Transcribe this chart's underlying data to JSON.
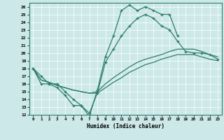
{
  "xlabel": "Humidex (Indice chaleur)",
  "line_color": "#2e7d6e",
  "bg_color": "#cce8e8",
  "xlim": [
    -0.5,
    23.5
  ],
  "ylim": [
    12,
    26.5
  ],
  "xticks": [
    0,
    1,
    2,
    3,
    4,
    5,
    6,
    7,
    8,
    9,
    10,
    11,
    12,
    13,
    14,
    15,
    16,
    17,
    18,
    19,
    20,
    21,
    22,
    23
  ],
  "yticks": [
    12,
    13,
    14,
    15,
    16,
    17,
    18,
    19,
    20,
    21,
    22,
    23,
    24,
    25,
    26
  ],
  "curve1_x": [
    0,
    1,
    2,
    3,
    4,
    5,
    6,
    7,
    8,
    9,
    10,
    11,
    12,
    13,
    14,
    15,
    16,
    17,
    18
  ],
  "curve1_y": [
    18,
    17,
    16,
    15.5,
    14.5,
    13.2,
    13.2,
    11.8,
    15.2,
    19.5,
    22.2,
    25.5,
    26.2,
    25.5,
    26.0,
    25.5,
    25.0,
    25.0,
    22.2
  ],
  "curve2_x": [
    0,
    1,
    2,
    3,
    4,
    5,
    6,
    7,
    8,
    9,
    10,
    11,
    12,
    13,
    14,
    15,
    16,
    17,
    18,
    19,
    20,
    21,
    22,
    23
  ],
  "curve2_y": [
    18,
    16.0,
    16.0,
    16.0,
    15.0,
    14.0,
    13.2,
    12.2,
    14.8,
    18.8,
    20.5,
    22.2,
    23.5,
    24.5,
    25.0,
    24.5,
    23.5,
    23.0,
    21.5,
    20.2,
    20.0,
    20.0,
    19.8,
    19.2
  ],
  "curve3_x": [
    0,
    1,
    2,
    3,
    4,
    5,
    6,
    7,
    8,
    9,
    10,
    11,
    12,
    13,
    14,
    15,
    16,
    17,
    18,
    19,
    20,
    21,
    22,
    23
  ],
  "curve3_y": [
    18,
    16.5,
    16.2,
    15.8,
    15.5,
    15.2,
    15.0,
    14.8,
    15.0,
    16.0,
    16.8,
    17.5,
    18.2,
    18.8,
    19.2,
    19.5,
    19.8,
    20.2,
    20.5,
    20.5,
    20.5,
    20.2,
    19.8,
    19.5
  ],
  "curve4_x": [
    0,
    1,
    2,
    3,
    4,
    5,
    6,
    7,
    8,
    9,
    10,
    11,
    12,
    13,
    14,
    15,
    16,
    17,
    18,
    19,
    20,
    21,
    22,
    23
  ],
  "curve4_y": [
    18,
    16.5,
    16.2,
    15.8,
    15.5,
    15.2,
    15.0,
    14.8,
    14.8,
    15.5,
    16.2,
    16.8,
    17.5,
    18.0,
    18.5,
    18.8,
    19.2,
    19.5,
    19.8,
    19.8,
    19.8,
    19.5,
    19.2,
    19.0
  ]
}
